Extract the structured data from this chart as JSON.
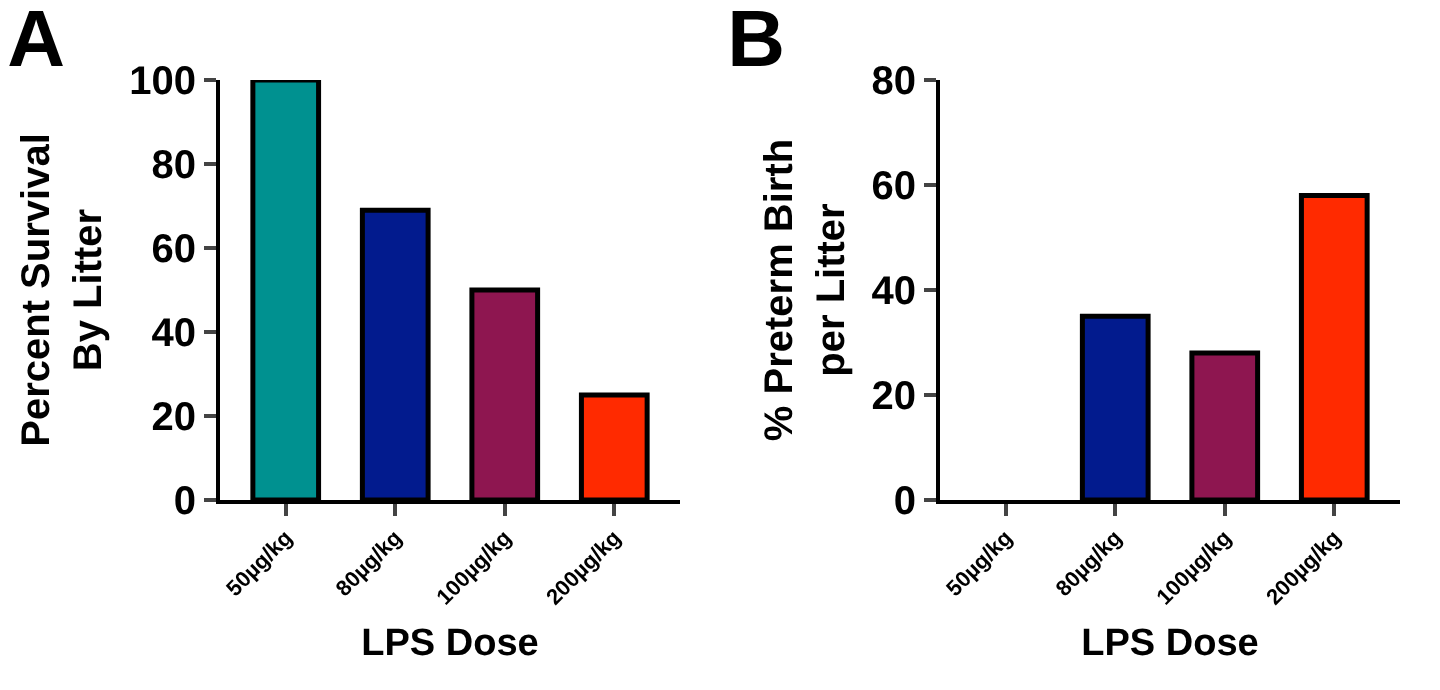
{
  "chart_data": [
    {
      "type": "bar",
      "title": "A",
      "xlabel": "LPS Dose",
      "ylabel": "Percent Survival\nBy Litter",
      "categories": [
        "50µg/kg",
        "80µg/kg",
        "100µg/kg",
        "200µg/kg"
      ],
      "values": [
        100,
        69,
        50,
        25
      ],
      "colors": [
        "#009190",
        "#021b8e",
        "#8e1650",
        "#ff2a00"
      ],
      "ylim": [
        0,
        100
      ],
      "yticks": [
        0,
        20,
        40,
        60,
        80,
        100
      ],
      "grid": false
    },
    {
      "type": "bar",
      "title": "B",
      "xlabel": "LPS Dose",
      "ylabel": "% Preterm Birth\nper Litter",
      "categories": [
        "50µg/kg",
        "80µg/kg",
        "100µg/kg",
        "200µg/kg"
      ],
      "values": [
        0,
        35,
        28,
        58
      ],
      "colors": [
        null,
        "#021b8e",
        "#8e1650",
        "#ff2a00"
      ],
      "ylim": [
        0,
        80
      ],
      "yticks": [
        0,
        20,
        40,
        60,
        80
      ],
      "grid": false
    }
  ]
}
